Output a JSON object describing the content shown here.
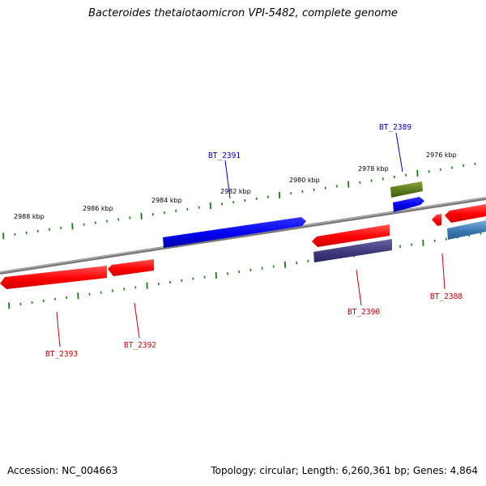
{
  "title": "Bacteroides thetaiotaomicron VPI-5482, complete genome",
  "footer": {
    "accession": "Accession: NC_004663",
    "summary": "Topology: circular; Length: 6,260,361 bp; Genes: 4,864"
  },
  "colors": {
    "backbone": "#808080",
    "tick": "#1a7a1a",
    "red_gene": "#ff0000",
    "blue_gene": "#0000ee",
    "olive_gene": "#5b7a1c",
    "purple_gene": "#3f3a7a",
    "steel_gene": "#3a78b0",
    "label_red": "#cc0000",
    "label_blue": "#0000cc"
  },
  "scale_labels": [
    "2988 kbp",
    "2986 kbp",
    "2984 kbp",
    "2982 kbp",
    "2980 kbp",
    "2978 kbp",
    "2976 kbp"
  ],
  "gene_labels": [
    {
      "text": "BT_2391",
      "strand": "forward"
    },
    {
      "text": "BT_2389",
      "strand": "forward"
    },
    {
      "text": "BT_2393",
      "strand": "reverse"
    },
    {
      "text": "BT_2392",
      "strand": "reverse"
    },
    {
      "text": "BT_2390",
      "strand": "reverse"
    },
    {
      "text": "BT_2388",
      "strand": "reverse"
    }
  ]
}
